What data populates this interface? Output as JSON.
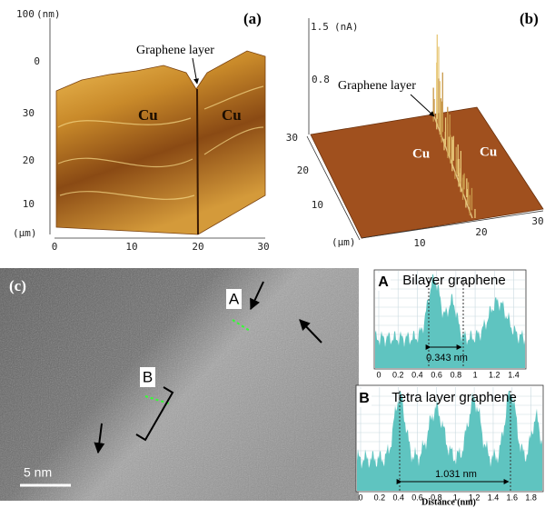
{
  "panel_a": {
    "label": "(a)",
    "z_axis_top": "100",
    "z_unit": "(nm)",
    "y_axis_ticks": [
      "0",
      "30",
      "20",
      "10"
    ],
    "axis_unit": "(µm)",
    "x_axis_ticks": [
      "0",
      "10",
      "20",
      "30"
    ],
    "annotation": "Graphene layer",
    "regions": [
      "Cu",
      "Cu"
    ]
  },
  "panel_b": {
    "label": "(b)",
    "z_axis_ticks": [
      "1.5",
      "0.8"
    ],
    "z_unit": "(nA)",
    "y_axis_ticks": [
      "30",
      "20",
      "10"
    ],
    "axis_unit": "(µm)",
    "x_axis_ticks": [
      "10",
      "20",
      "30"
    ],
    "annotation": "Graphene layer",
    "regions": [
      "Cu",
      "Cu"
    ]
  },
  "panel_c": {
    "label": "(c)",
    "markers": [
      "A",
      "B"
    ],
    "scale_bar": "5 nm"
  },
  "inset_a": {
    "label": "A",
    "title": "Bilayer graphene",
    "spacing": "0.343 nm",
    "x_ticks": [
      "0",
      "0.2",
      "0.4",
      "0.6",
      "0.8",
      "1",
      "1.2",
      "1.4"
    ]
  },
  "inset_b": {
    "label": "B",
    "title": "Tetra layer graphene",
    "spacing": "1.031 nm",
    "x_ticks": [
      "0",
      "0.2",
      "0.4",
      "0.6",
      "0.8",
      "1",
      "1.2",
      "1.4",
      "1.6",
      "1.8"
    ],
    "x_label": "Distance (nm)"
  }
}
